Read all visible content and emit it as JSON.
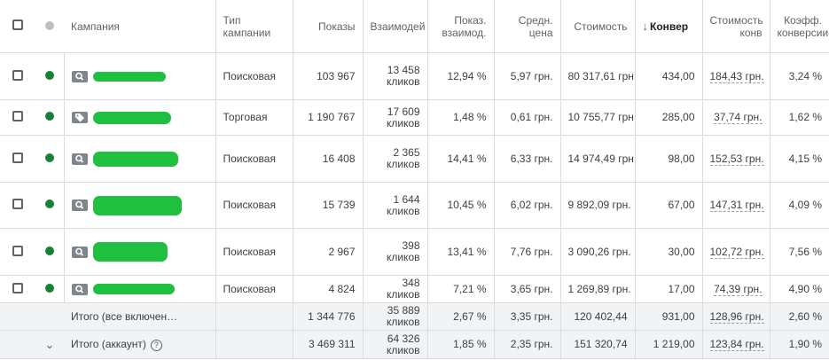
{
  "headers": {
    "campaign": "Кампания",
    "type": "Тип кампании",
    "impressions": "Показы",
    "interactions": "Взаимодей",
    "interaction_rate": "Показ. взаимод.",
    "avg_price": "Средн. цена",
    "cost": "Стоимость",
    "conversions": "Конвер",
    "cost_per_conv": "Стоимость конв",
    "conv_rate": "Коэфф. конверсии"
  },
  "rows": [
    {
      "icon": "search-icon",
      "type": "Поисковая",
      "impressions": "103 967",
      "interactions": "13 458",
      "interactions_unit": "кликов",
      "interaction_rate": "12,94 %",
      "avg_price": "5,97 грн.",
      "cost": "80 317,61 грн.",
      "conversions": "434,00",
      "cost_per_conv": "184,43 грн.",
      "conv_rate": "3,24 %"
    },
    {
      "icon": "tag-icon",
      "type": "Торговая",
      "impressions": "1 190 767",
      "interactions": "17 609",
      "interactions_unit": "кликов",
      "interaction_rate": "1,48 %",
      "avg_price": "0,61 грн.",
      "cost": "10 755,77 грн.",
      "conversions": "285,00",
      "cost_per_conv": "37,74 грн.",
      "conv_rate": "1,62 %"
    },
    {
      "icon": "search-icon",
      "type": "Поисковая",
      "impressions": "16 408",
      "interactions": "2 365",
      "interactions_unit": "кликов",
      "interaction_rate": "14,41 %",
      "avg_price": "6,33 грн.",
      "cost": "14 974,49 грн.",
      "conversions": "98,00",
      "cost_per_conv": "152,53 грн.",
      "conv_rate": "4,15 %"
    },
    {
      "icon": "search-icon",
      "type": "Поисковая",
      "impressions": "15 739",
      "interactions": "1 644",
      "interactions_unit": "кликов",
      "interaction_rate": "10,45 %",
      "avg_price": "6,02 грн.",
      "cost": "9 892,09 грн.",
      "conversions": "67,00",
      "cost_per_conv": "147,31 грн.",
      "conv_rate": "4,09 %"
    },
    {
      "icon": "search-icon",
      "type": "Поисковая",
      "impressions": "2 967",
      "interactions": "398",
      "interactions_unit": "кликов",
      "interaction_rate": "13,41 %",
      "avg_price": "7,76 грн.",
      "cost": "3 090,26 грн.",
      "conversions": "30,00",
      "cost_per_conv": "102,72 грн.",
      "conv_rate": "7,56 %"
    },
    {
      "icon": "search-icon",
      "type": "Поисковая",
      "impressions": "4 824",
      "interactions": "348",
      "interactions_unit": "кликов",
      "interaction_rate": "7,21 %",
      "avg_price": "3,65 грн.",
      "cost": "1 269,89 грн.",
      "conversions": "17,00",
      "cost_per_conv": "74,39 грн.",
      "conv_rate": "4,90 %"
    }
  ],
  "totals": [
    {
      "label": "Итого (все включен…",
      "impressions": "1 344 776",
      "interactions": "35 889",
      "interactions_unit": "кликов",
      "interaction_rate": "2,67 %",
      "avg_price": "3,35 грн.",
      "cost": "120 402,44",
      "conversions": "931,00",
      "cost_per_conv": "128,96 грн.",
      "conv_rate": "2,60 %"
    },
    {
      "label": "Итого (аккаунт)",
      "impressions": "3 469 311",
      "interactions": "64 326",
      "interactions_unit": "кликов",
      "interaction_rate": "1,85 %",
      "avg_price": "2,35 грн.",
      "cost": "151 320,74",
      "conversions": "1 219,00",
      "cost_per_conv": "123,84 грн.",
      "conv_rate": "1,90 %"
    }
  ],
  "colors": {
    "status_enabled": "#188038",
    "redaction": "#1fbf40"
  }
}
